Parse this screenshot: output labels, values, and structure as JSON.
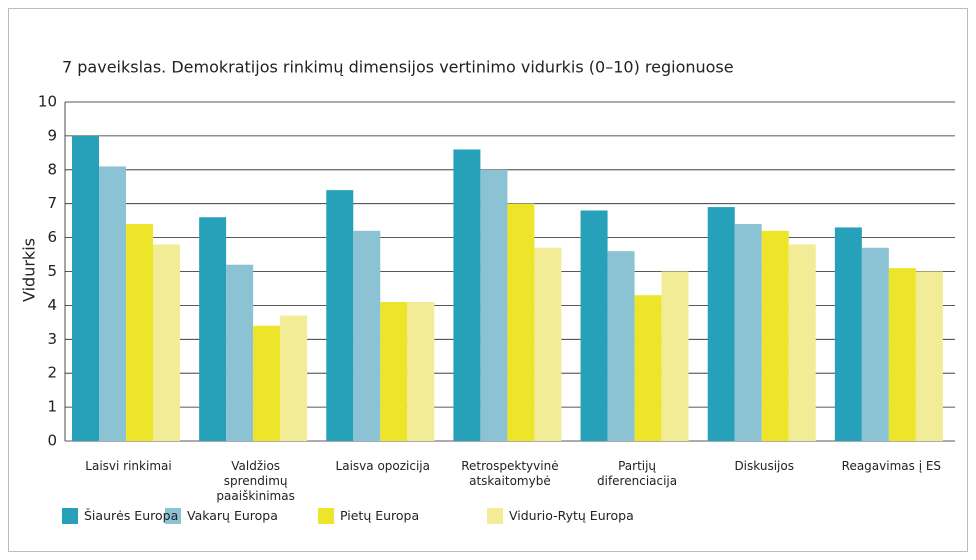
{
  "chart_data": {
    "type": "bar",
    "title": "7 paveikslas. Demokratijos rinkimų dimensijos vertinimo vidurkis (0–10) regionuose",
    "y_label": "Vidurkis",
    "categories": [
      "Laisvi rinkimai",
      "Valdžios\nsprendimų\npaaiškinimas",
      "Laisva opozicija",
      "Retrospektyvinė\natskaitomybė",
      "Partijų\ndiferenciacija",
      "Diskusijos",
      "Reagavimas į ES"
    ],
    "series": [
      {
        "name": "Šiaurės Europa",
        "color": "#27a0b9",
        "values": [
          9.0,
          6.6,
          7.4,
          8.6,
          6.8,
          6.9,
          6.3
        ]
      },
      {
        "name": "Vakarų Europa",
        "color": "#8cc3d4",
        "values": [
          8.1,
          5.2,
          6.2,
          8.0,
          5.6,
          6.4,
          5.7
        ]
      },
      {
        "name": "Pietų Europa",
        "color": "#ede52a",
        "values": [
          6.4,
          3.4,
          4.1,
          7.0,
          4.3,
          6.2,
          5.1
        ]
      },
      {
        "name": "Vidurio-Rytų Europa",
        "color": "#f2ec96",
        "values": [
          5.8,
          3.7,
          4.1,
          5.7,
          5.0,
          5.8,
          5.0
        ]
      }
    ],
    "ylim": [
      0,
      10
    ],
    "yticks": [
      0,
      1,
      2,
      3,
      4,
      5,
      6,
      7,
      8,
      9,
      10
    ],
    "grid": true,
    "legend": "bottom"
  }
}
